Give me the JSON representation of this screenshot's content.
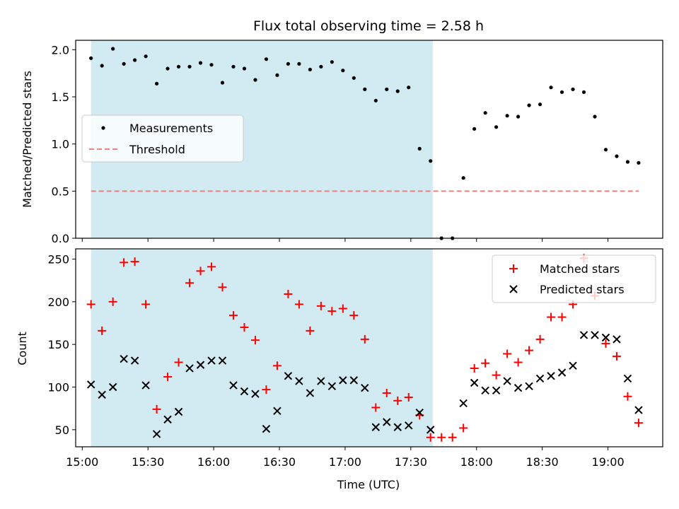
{
  "chart_data": [
    {
      "type": "scatter",
      "title": "Flux total observing time = 2.58 h",
      "xlabel": "",
      "ylabel": "Matched/Predicted stars",
      "xlim": [
        "14:57",
        "19:25"
      ],
      "ylim": [
        0,
        2.1
      ],
      "yticks": [
        0.0,
        0.5,
        1.0,
        1.5,
        2.0
      ],
      "ytick_labels": [
        "0.0",
        "0.5",
        "1.0",
        "1.5",
        "2.0"
      ],
      "shaded_region": {
        "start": "15:04",
        "end": "17:40",
        "color": "#add8e6"
      },
      "legend": {
        "placement": "center-left",
        "entries": [
          "Measurements",
          "Threshold"
        ]
      },
      "series": [
        {
          "name": "Measurements",
          "marker": "dot",
          "color": "#000000",
          "x": [
            "15:04",
            "15:09",
            "15:14",
            "15:19",
            "15:24",
            "15:29",
            "15:34",
            "15:39",
            "15:44",
            "15:49",
            "15:54",
            "15:59",
            "16:04",
            "16:09",
            "16:14",
            "16:19",
            "16:24",
            "16:29",
            "16:34",
            "16:39",
            "16:44",
            "16:49",
            "16:54",
            "16:59",
            "17:04",
            "17:09",
            "17:14",
            "17:19",
            "17:24",
            "17:29",
            "17:34",
            "17:39",
            "17:44",
            "17:49",
            "17:54",
            "17:59",
            "18:04",
            "18:09",
            "18:14",
            "18:19",
            "18:24",
            "18:29",
            "18:34",
            "18:39",
            "18:44",
            "18:49",
            "18:54",
            "18:59",
            "19:04",
            "19:09",
            "19:14"
          ],
          "y": [
            1.91,
            1.83,
            2.01,
            1.85,
            1.89,
            1.93,
            1.64,
            1.8,
            1.82,
            1.82,
            1.86,
            1.84,
            1.65,
            1.82,
            1.8,
            1.68,
            1.9,
            1.73,
            1.85,
            1.85,
            1.79,
            1.82,
            1.87,
            1.78,
            1.7,
            1.58,
            1.46,
            1.58,
            1.56,
            1.6,
            0.95,
            0.82,
            0.0,
            0.0,
            0.64,
            1.16,
            1.33,
            1.18,
            1.3,
            1.29,
            1.41,
            1.42,
            1.6,
            1.55,
            1.58,
            1.55,
            1.29,
            0.94,
            0.87,
            0.81,
            0.8
          ]
        },
        {
          "name": "Threshold",
          "marker": "dashed-line",
          "color": "#f08080",
          "x": [
            "15:04",
            "19:14"
          ],
          "y": [
            0.5,
            0.5
          ]
        }
      ]
    },
    {
      "type": "scatter",
      "title": "",
      "xlabel": "Time (UTC)",
      "ylabel": "Count",
      "xlim": [
        "14:57",
        "19:25"
      ],
      "ylim": [
        30,
        262
      ],
      "xticks": [
        "15:00",
        "15:30",
        "16:00",
        "16:30",
        "17:00",
        "17:30",
        "18:00",
        "18:30",
        "19:00"
      ],
      "yticks": [
        50,
        100,
        150,
        200,
        250
      ],
      "ytick_labels": [
        "50",
        "100",
        "150",
        "200",
        "250"
      ],
      "shaded_region": {
        "start": "15:04",
        "end": "17:40",
        "color": "#add8e6"
      },
      "legend": {
        "placement": "top-right",
        "entries": [
          "Matched stars",
          "Predicted stars"
        ]
      },
      "series": [
        {
          "name": "Matched stars",
          "marker": "plus",
          "color": "#ff0000",
          "x": [
            "15:04",
            "15:09",
            "15:14",
            "15:19",
            "15:24",
            "15:29",
            "15:34",
            "15:39",
            "15:44",
            "15:49",
            "15:54",
            "15:59",
            "16:04",
            "16:09",
            "16:14",
            "16:19",
            "16:24",
            "16:29",
            "16:34",
            "16:39",
            "16:44",
            "16:49",
            "16:54",
            "16:59",
            "17:04",
            "17:09",
            "17:14",
            "17:19",
            "17:24",
            "17:29",
            "17:34",
            "17:39",
            "17:44",
            "17:49",
            "17:54",
            "17:59",
            "18:04",
            "18:09",
            "18:14",
            "18:19",
            "18:24",
            "18:29",
            "18:34",
            "18:39",
            "18:44",
            "18:49",
            "18:54",
            "18:59",
            "19:04",
            "19:09",
            "19:14"
          ],
          "y": [
            197,
            166,
            200,
            246,
            247,
            197,
            74,
            112,
            129,
            222,
            236,
            241,
            217,
            184,
            170,
            155,
            97,
            125,
            209,
            197,
            166,
            195,
            189,
            192,
            184,
            156,
            76,
            93,
            84,
            88,
            67,
            41,
            41,
            41,
            52,
            122,
            128,
            114,
            139,
            129,
            143,
            156,
            182,
            182,
            197,
            251,
            207,
            151,
            136,
            89,
            58
          ]
        },
        {
          "name": "Predicted stars",
          "marker": "x",
          "color": "#000000",
          "x": [
            "15:04",
            "15:09",
            "15:14",
            "15:19",
            "15:24",
            "15:29",
            "15:34",
            "15:39",
            "15:44",
            "15:49",
            "15:54",
            "15:59",
            "16:04",
            "16:09",
            "16:14",
            "16:19",
            "16:24",
            "16:29",
            "16:34",
            "16:39",
            "16:44",
            "16:49",
            "16:54",
            "16:59",
            "17:04",
            "17:09",
            "17:14",
            "17:19",
            "17:24",
            "17:29",
            "17:34",
            "17:39",
            "17:54",
            "17:59",
            "18:04",
            "18:09",
            "18:14",
            "18:19",
            "18:24",
            "18:29",
            "18:34",
            "18:39",
            "18:44",
            "18:49",
            "18:54",
            "18:59",
            "19:04",
            "19:09",
            "19:14"
          ],
          "y": [
            103,
            91,
            100,
            133,
            131,
            102,
            45,
            62,
            71,
            122,
            126,
            131,
            131,
            102,
            95,
            92,
            51,
            72,
            113,
            107,
            93,
            107,
            101,
            108,
            108,
            99,
            53,
            59,
            53,
            55,
            70,
            50,
            81,
            105,
            96,
            96,
            107,
            99,
            101,
            110,
            113,
            117,
            125,
            161,
            161,
            158,
            156,
            110,
            73
          ]
        }
      ]
    }
  ]
}
